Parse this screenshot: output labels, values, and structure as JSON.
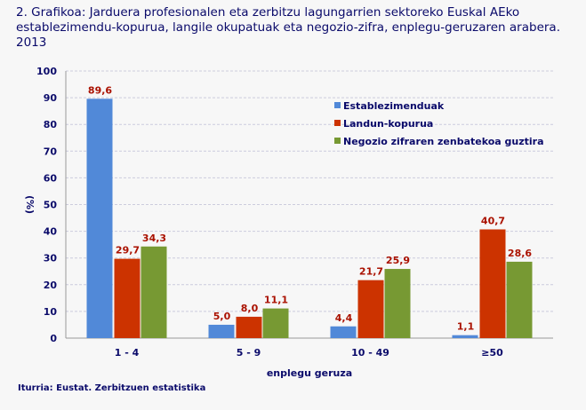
{
  "title": "2. Grafikoa: Jarduera profesionalen eta zerbitzu lagungarrien sektoreko Euskal AEko establezimendu-kopurua, langile okupatuak eta negozio-zifra, enplegu-geruzaren arabera. 2013",
  "source": "Iturria: Eustat. Zerbitzuen estatistika",
  "chart_data": {
    "type": "bar",
    "xlabel": "enplegu geruza",
    "ylabel": "(%)",
    "ylim": [
      0,
      100
    ],
    "yticks": [
      0,
      10,
      20,
      30,
      40,
      50,
      60,
      70,
      80,
      90,
      100
    ],
    "grid": true,
    "legend_position": "top-right",
    "categories": [
      "1 - 4",
      "5 - 9",
      "10 - 49",
      "≥50"
    ],
    "series": [
      {
        "name": "Establezimenduak",
        "color": "#5189d8",
        "values": [
          89.6,
          5.0,
          4.4,
          1.1
        ],
        "labels": [
          "89,6",
          "5,0",
          "4,4",
          "1,1"
        ]
      },
      {
        "name": "Landun-kopurua",
        "color": "#cc3300",
        "values": [
          29.7,
          8.0,
          21.7,
          40.7
        ],
        "labels": [
          "29,7",
          "8,0",
          "21,7",
          "40,7"
        ]
      },
      {
        "name": "Negozio zifraren zenbatekoa guztira",
        "color": "#779933",
        "values": [
          34.3,
          11.1,
          25.9,
          28.6
        ],
        "labels": [
          "34,3",
          "11,1",
          "25,9",
          "28,6"
        ]
      }
    ],
    "label_color": "#aa1100",
    "axis_text_color": "#0a0a6a"
  }
}
